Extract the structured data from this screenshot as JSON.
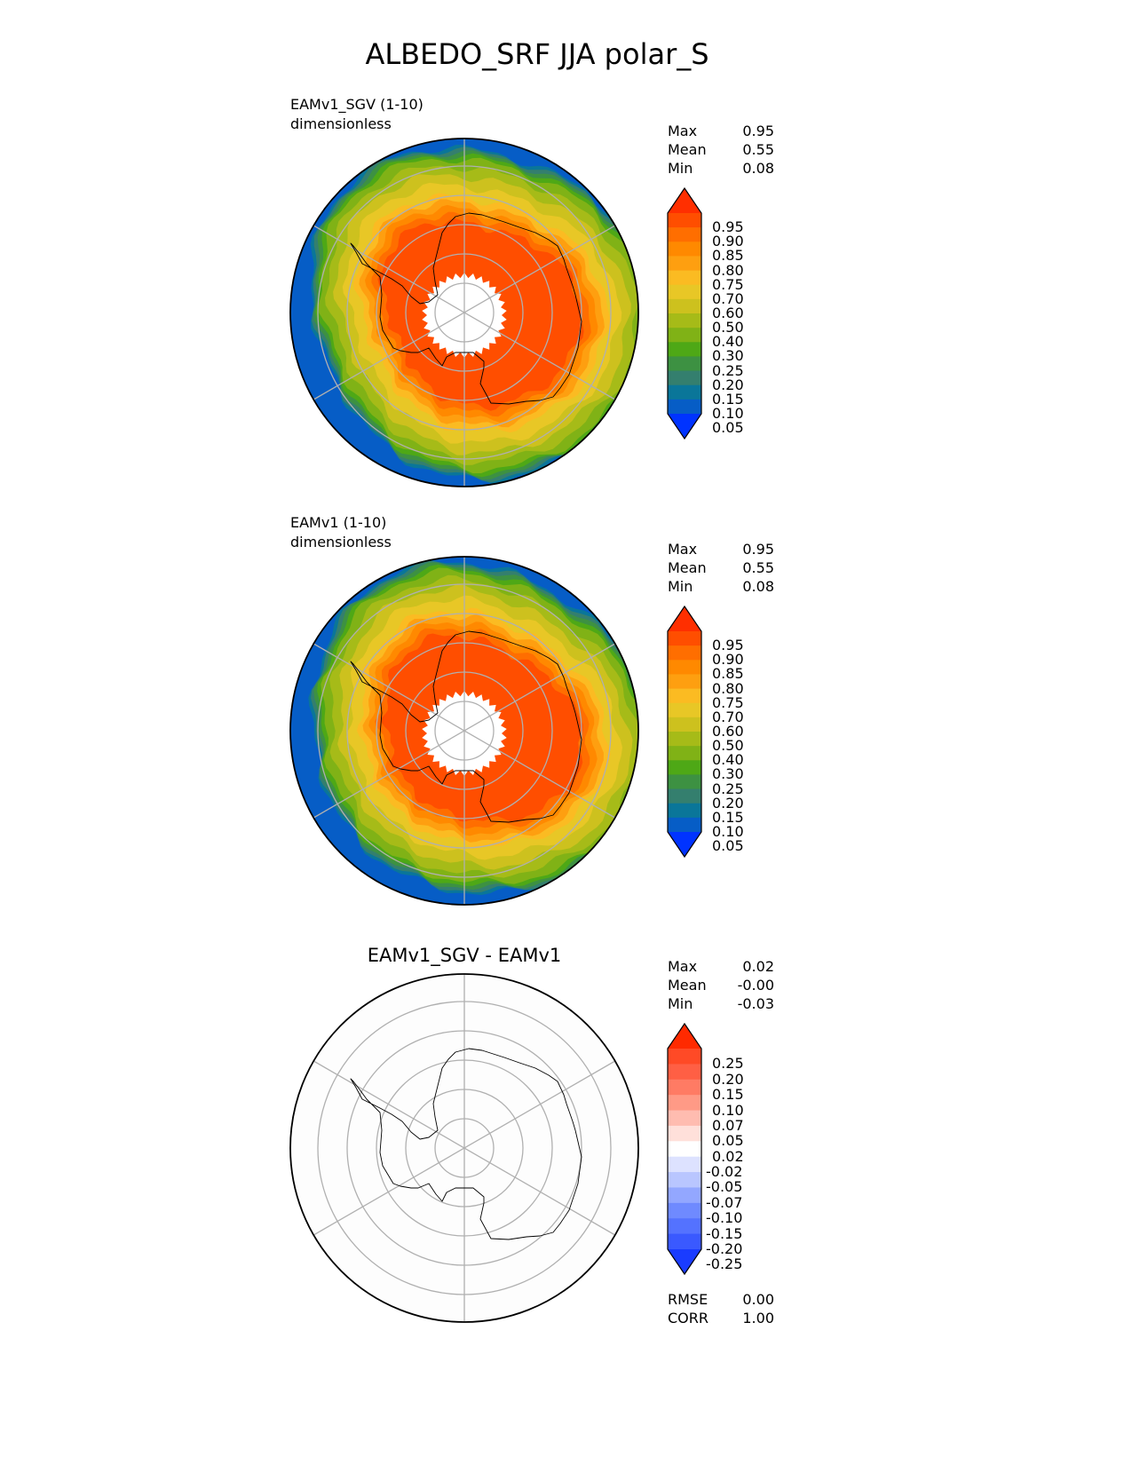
{
  "title": "ALBEDO_SRF JJA polar_S",
  "chart_data": [
    {
      "type": "heatmap",
      "projection": "south-polar-stereographic",
      "title_line1": "EAMv1_SGV (1-10)",
      "title_line2": "dimensionless",
      "stats": [
        {
          "label": "Max",
          "value": "0.95"
        },
        {
          "label": "Mean",
          "value": "0.55"
        },
        {
          "label": "Min",
          "value": "0.08"
        }
      ],
      "colorbar": {
        "levels": [
          "0.95",
          "0.90",
          "0.85",
          "0.80",
          "0.75",
          "0.70",
          "0.60",
          "0.50",
          "0.40",
          "0.30",
          "0.25",
          "0.20",
          "0.15",
          "0.10",
          "0.05"
        ],
        "colors": [
          "#ff2f00",
          "#ff4e00",
          "#ff6e00",
          "#ff8900",
          "#fe9f10",
          "#fbbb22",
          "#e8c726",
          "#cdc11e",
          "#a6bb18",
          "#80b216",
          "#4ea816",
          "#3d9142",
          "#347f6e",
          "#0a7699",
          "#065dc6",
          "#0033ff"
        ],
        "extend": "both"
      },
      "field_levels": [
        0.1,
        0.15,
        0.2,
        0.25,
        0.3,
        0.4,
        0.5,
        0.6,
        0.7,
        0.75,
        0.8,
        0.85,
        0.9
      ]
    },
    {
      "type": "heatmap",
      "projection": "south-polar-stereographic",
      "title_line1": "EAMv1 (1-10)",
      "title_line2": "dimensionless",
      "stats": [
        {
          "label": "Max",
          "value": "0.95"
        },
        {
          "label": "Mean",
          "value": "0.55"
        },
        {
          "label": "Min",
          "value": "0.08"
        }
      ],
      "colorbar": {
        "levels": [
          "0.95",
          "0.90",
          "0.85",
          "0.80",
          "0.75",
          "0.70",
          "0.60",
          "0.50",
          "0.40",
          "0.30",
          "0.25",
          "0.20",
          "0.15",
          "0.10",
          "0.05"
        ],
        "colors": [
          "#ff2f00",
          "#ff4e00",
          "#ff6e00",
          "#ff8900",
          "#fe9f10",
          "#fbbb22",
          "#e8c726",
          "#cdc11e",
          "#a6bb18",
          "#80b216",
          "#4ea816",
          "#3d9142",
          "#347f6e",
          "#0a7699",
          "#065dc6",
          "#0033ff"
        ],
        "extend": "both"
      },
      "field_levels": [
        0.1,
        0.15,
        0.2,
        0.25,
        0.3,
        0.4,
        0.5,
        0.6,
        0.7,
        0.75,
        0.8,
        0.85,
        0.9
      ]
    },
    {
      "type": "heatmap",
      "projection": "south-polar-stereographic",
      "title": "EAMv1_SGV - EAMv1",
      "stats": [
        {
          "label": "Max",
          "value": "0.02"
        },
        {
          "label": "Mean",
          "value": "-0.00"
        },
        {
          "label": "Min",
          "value": "-0.03"
        }
      ],
      "colorbar": {
        "levels": [
          "0.25",
          "0.20",
          "0.15",
          "0.10",
          "0.07",
          "0.05",
          "0.02",
          "-0.02",
          "-0.05",
          "-0.07",
          "-0.10",
          "-0.15",
          "-0.20",
          "-0.25"
        ],
        "colors": [
          "#ff2a00",
          "#ff4a26",
          "#ff5f44",
          "#ff7b64",
          "#ff9a86",
          "#ffbcb0",
          "#ffe0da",
          "#ffffff",
          "#dde2ff",
          "#b9c6ff",
          "#93a7ff",
          "#6f8aff",
          "#5472ff",
          "#3a59ff",
          "#1a3cff"
        ],
        "extend": "both"
      },
      "footer_stats": [
        {
          "label": "RMSE",
          "value": "0.00"
        },
        {
          "label": "CORR",
          "value": "1.00"
        }
      ]
    }
  ]
}
